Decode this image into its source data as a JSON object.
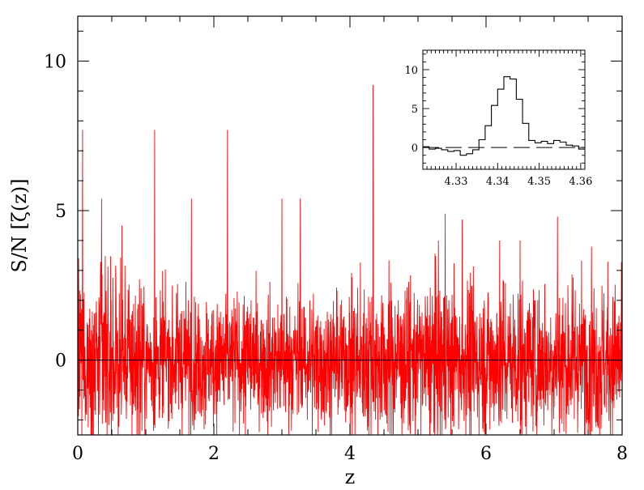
{
  "chart_data": {
    "type": "line",
    "title": "",
    "xlabel": "z",
    "ylabel": "S/N  [ζ(z)]",
    "xlim": [
      0,
      8
    ],
    "ylim": [
      -2.5,
      11.5
    ],
    "x_ticks": [
      0,
      2,
      4,
      6,
      8
    ],
    "y_ticks": [
      0,
      5,
      10
    ],
    "x_tick_labels": [
      "0",
      "2",
      "4",
      "6",
      "8"
    ],
    "y_tick_labels": [
      "0",
      "5",
      "10"
    ],
    "grid": false,
    "line_color": "#ff0000",
    "zero_line": true,
    "series": [
      {
        "style": "noisy",
        "x_range": [
          0,
          8
        ],
        "noise_sigma": 1.3,
        "spikes": [
          {
            "x": 0.07,
            "y": 7.7
          },
          {
            "x": 0.35,
            "y": 5.4
          },
          {
            "x": 0.65,
            "y": 4.5
          },
          {
            "x": 1.13,
            "y": 7.7
          },
          {
            "x": 1.67,
            "y": 5.4
          },
          {
            "x": 2.2,
            "y": 7.7
          },
          {
            "x": 3.0,
            "y": 5.4
          },
          {
            "x": 3.27,
            "y": 5.4
          },
          {
            "x": 4.34,
            "y": 9.2
          },
          {
            "x": 5.3,
            "y": 4.0
          },
          {
            "x": 5.4,
            "y": 4.9
          },
          {
            "x": 5.65,
            "y": 4.7
          },
          {
            "x": 6.2,
            "y": 4.0
          },
          {
            "x": 6.5,
            "y": 4.0
          },
          {
            "x": 7.05,
            "y": 4.8
          },
          {
            "x": 7.55,
            "y": 3.8
          }
        ]
      }
    ],
    "inset": {
      "type": "step",
      "xlim": [
        4.322,
        4.361
      ],
      "ylim": [
        -2.8,
        12.5
      ],
      "x_ticks": [
        4.33,
        4.34,
        4.35,
        4.36
      ],
      "y_ticks": [
        0,
        5,
        10
      ],
      "x_tick_labels": [
        "4.33",
        "4.34",
        "4.35",
        "4.36"
      ],
      "y_tick_labels": [
        "0",
        "5",
        "10"
      ],
      "zero_line": "dashed",
      "x": [
        4.322,
        4.3235,
        4.325,
        4.3265,
        4.328,
        4.3295,
        4.331,
        4.3325,
        4.334,
        4.3355,
        4.337,
        4.3385,
        4.34,
        4.3415,
        4.343,
        4.3445,
        4.346,
        4.3475,
        4.349,
        4.3505,
        4.352,
        4.3535,
        4.355,
        4.3565,
        4.358,
        4.3595
      ],
      "y": [
        0.1,
        -0.2,
        -0.1,
        -0.3,
        -0.5,
        -0.4,
        -1.0,
        -0.8,
        -0.3,
        1.0,
        2.8,
        5.4,
        7.5,
        9.1,
        8.8,
        6.2,
        3.1,
        0.9,
        0.6,
        0.8,
        0.5,
        0.9,
        0.7,
        0.3,
        0.2,
        -0.2
      ]
    }
  }
}
